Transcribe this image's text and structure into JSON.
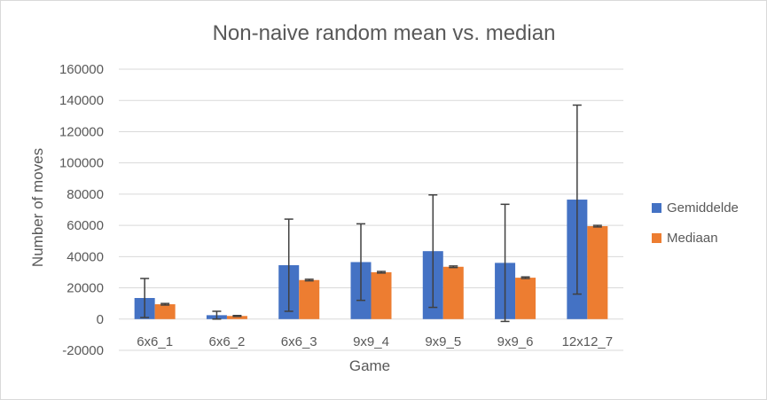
{
  "chart_data": {
    "type": "bar",
    "title": "Non-naive random mean vs. median",
    "xlabel": "Game",
    "ylabel": "Number of moves",
    "categories": [
      "6x6_1",
      "6x6_2",
      "6x6_3",
      "9x9_4",
      "9x9_5",
      "9x9_6",
      "12x12_7"
    ],
    "ylim": [
      -20000,
      160000
    ],
    "yticks": [
      -20000,
      0,
      20000,
      40000,
      60000,
      80000,
      100000,
      120000,
      140000,
      160000
    ],
    "grid": true,
    "legend_position": "right",
    "series": [
      {
        "name": "Gemiddelde",
        "color": "#4472c4",
        "values": [
          13500,
          2500,
          34500,
          36500,
          43500,
          36000,
          76500
        ],
        "error": [
          12500,
          2500,
          29500,
          24500,
          36000,
          37500,
          60500
        ]
      },
      {
        "name": "Mediaan",
        "color": "#ed7d31",
        "values": [
          9500,
          2000,
          25000,
          30000,
          33500,
          26500,
          59500
        ],
        "error": [
          500,
          300,
          500,
          500,
          500,
          500,
          500
        ]
      }
    ]
  }
}
